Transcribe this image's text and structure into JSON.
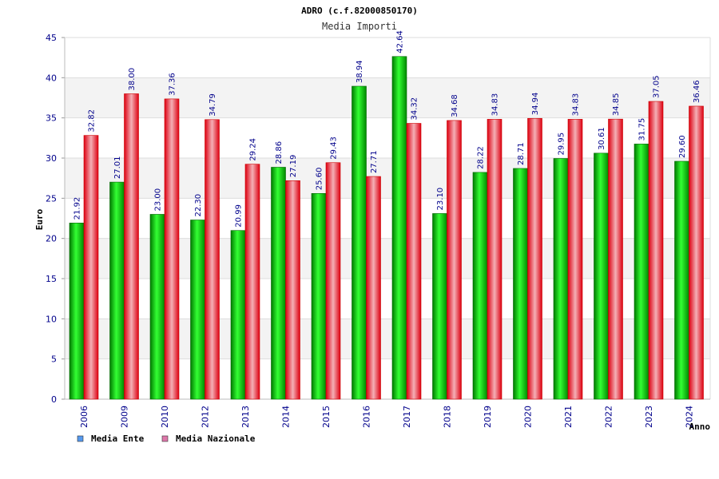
{
  "chart_data": {
    "type": "bar",
    "title": "ADRO (c.f.82000850170)",
    "subtitle": "Media Importi",
    "ylabel": "Euro",
    "xlabel": "Anno",
    "ylim": [
      0,
      45
    ],
    "yticks": [
      0,
      5,
      10,
      15,
      20,
      25,
      30,
      35,
      40,
      45
    ],
    "grid": true,
    "legend_position": "bottom-left",
    "categories": [
      "2006",
      "2009",
      "2010",
      "2012",
      "2013",
      "2014",
      "2015",
      "2016",
      "2017",
      "2018",
      "2019",
      "2020",
      "2021",
      "2022",
      "2023",
      "2024"
    ],
    "series": [
      {
        "name": "Media Ente",
        "color": "#00cc00",
        "legend_color": "#5599ee",
        "values": [
          21.92,
          27.01,
          23.0,
          22.3,
          20.99,
          28.86,
          25.6,
          38.94,
          42.64,
          23.1,
          28.22,
          28.71,
          29.95,
          30.61,
          31.75,
          29.6
        ],
        "labels": [
          "21.92",
          "27.01",
          "23.00",
          "22.30",
          "20.99",
          "28.86",
          "25.60",
          "38.94",
          "42.64",
          "23.10",
          "28.22",
          "28.71",
          "29.95",
          "30.61",
          "31.75",
          "29.60"
        ]
      },
      {
        "name": "Media Nazionale",
        "color": "#ee2233",
        "legend_color": "#dd77aa",
        "values": [
          32.82,
          38.0,
          37.36,
          34.79,
          29.24,
          27.19,
          29.43,
          27.71,
          34.32,
          34.68,
          34.83,
          34.94,
          34.83,
          34.85,
          37.05,
          36.46
        ],
        "labels": [
          "32.82",
          "38.00",
          "37.36",
          "34.79",
          "29.24",
          "27.19",
          "29.43",
          "27.71",
          "34.32",
          "34.68",
          "34.83",
          "34.94",
          "34.83",
          "34.85",
          "37.05",
          "36.46"
        ]
      }
    ]
  }
}
